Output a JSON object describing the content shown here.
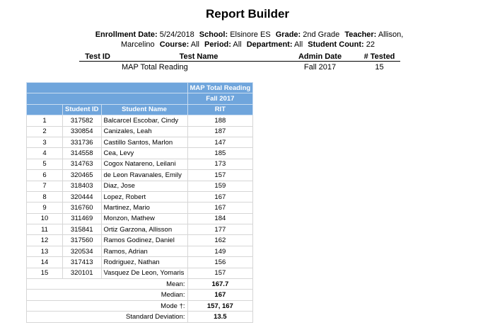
{
  "header": {
    "title": "Report Builder"
  },
  "info": [
    {
      "label": "Enrollment Date:",
      "value": "5/24/2018"
    },
    {
      "label": "School:",
      "value": "Elsinore ES"
    },
    {
      "label": "Grade:",
      "value": "2nd Grade"
    },
    {
      "label": "Teacher:",
      "value": "Allison, Marcelino"
    },
    {
      "label": "Course:",
      "value": "All"
    },
    {
      "label": "Period:",
      "value": "All"
    },
    {
      "label": "Department:",
      "value": "All"
    },
    {
      "label": "Student Count:",
      "value": "22"
    }
  ],
  "tests": {
    "columns": [
      "Test ID",
      "Test Name",
      "Admin Date",
      "# Tested"
    ],
    "rows": [
      {
        "test_name": "MAP Total Reading",
        "admin_date": "Fall 2017",
        "tested": 15
      }
    ]
  },
  "scores": {
    "test": "MAP Total Reading",
    "admin": "Fall 2017",
    "columns": [
      "Student ID",
      "Student Name",
      "RIT"
    ],
    "rows": [
      [
        1,
        "317582",
        "Balcarcel Escobar, Cindy",
        188
      ],
      [
        2,
        "330854",
        "Canizales, Leah",
        187
      ],
      [
        3,
        "331736",
        "Castillo Santos, Marlon",
        147
      ],
      [
        4,
        "314558",
        "Cea, Levy",
        185
      ],
      [
        5,
        "314763",
        "Cogox Natareno, Leilani",
        173
      ],
      [
        6,
        "320465",
        "de Leon Ravanales, Emily",
        157
      ],
      [
        7,
        "318403",
        "Diaz, Jose",
        159
      ],
      [
        8,
        "320444",
        "Lopez, Robert",
        167
      ],
      [
        9,
        "316760",
        "Martinez, Mario",
        167
      ],
      [
        10,
        "311469",
        "Monzon, Mathew",
        184
      ],
      [
        11,
        "315841",
        "Ortiz Garzona, Allisson",
        177
      ],
      [
        12,
        "317560",
        "Ramos Godinez, Daniel",
        162
      ],
      [
        13,
        "320534",
        "Ramos, Adrian",
        149
      ],
      [
        14,
        "317413",
        "Rodriguez, Nathan",
        156
      ],
      [
        15,
        "320101",
        "Vasquez De Leon, Yomaris",
        157
      ]
    ],
    "stats": [
      {
        "label": "Mean:",
        "value": 167.7
      },
      {
        "label": "Median:",
        "value": 167
      },
      {
        "label": "Mode †:",
        "value": "157, 167"
      },
      {
        "label": "Standard Deviation:",
        "value": 13.5
      }
    ]
  }
}
